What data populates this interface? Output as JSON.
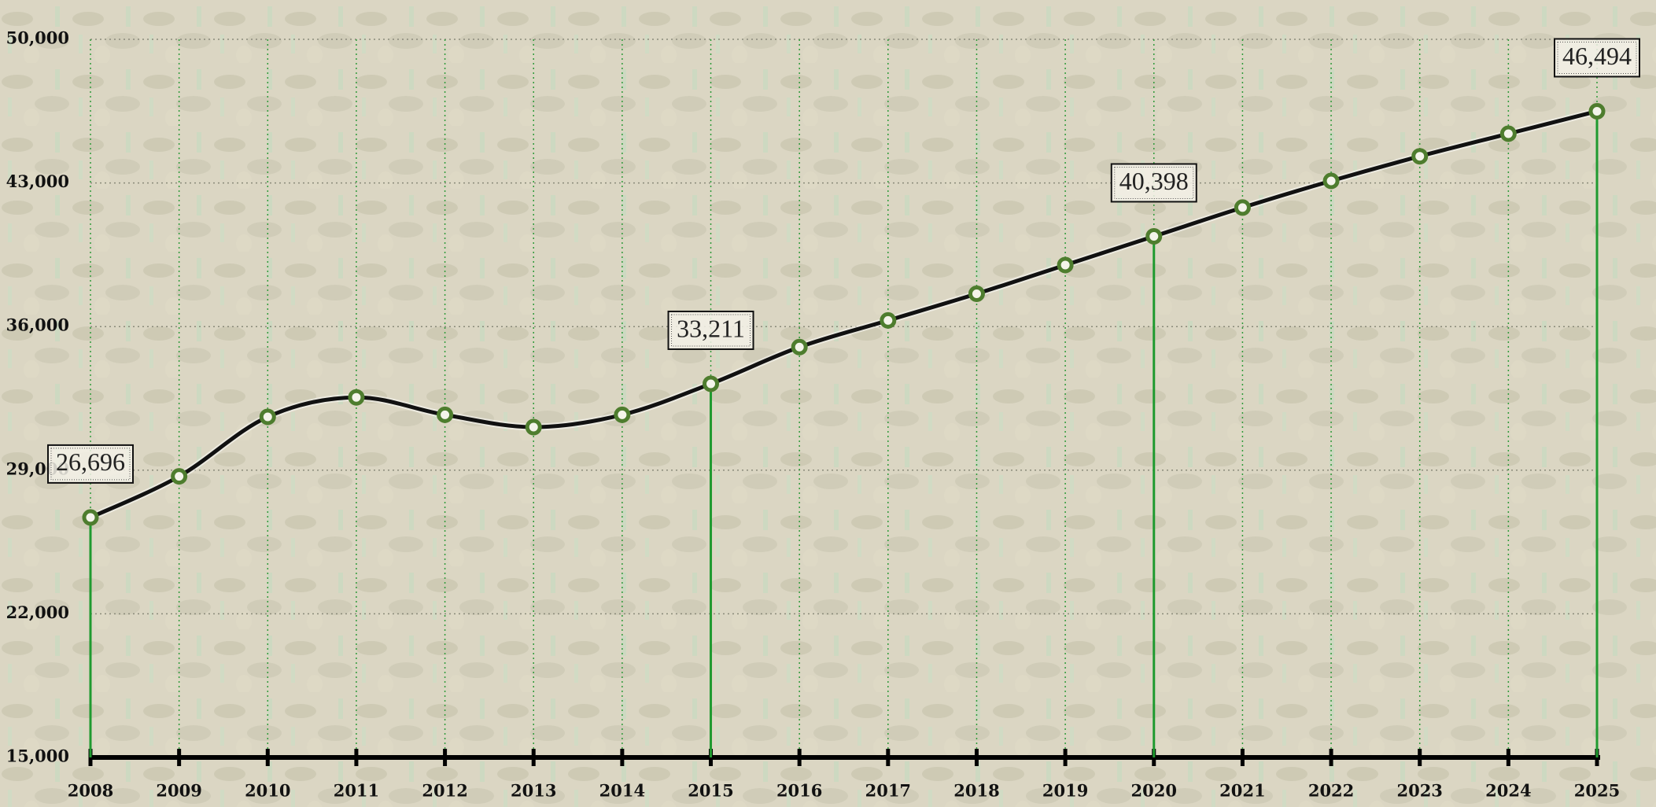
{
  "chart_data": {
    "type": "line",
    "categories": [
      "2008",
      "2009",
      "2010",
      "2011",
      "2012",
      "2013",
      "2014",
      "2015",
      "2016",
      "2017",
      "2018",
      "2019",
      "2020",
      "2021",
      "2022",
      "2023",
      "2024",
      "2025"
    ],
    "series": [
      {
        "color": "#111111",
        "values": [
          26696,
          28700,
          31600,
          32550,
          31700,
          31100,
          31700,
          33211,
          35000,
          36300,
          37600,
          39000,
          40398,
          41800,
          43100,
          44300,
          45400,
          46494
        ],
        "value_labels": [
          "26,696",
          null,
          null,
          null,
          null,
          null,
          null,
          "33,211",
          null,
          null,
          null,
          null,
          "40,398",
          null,
          null,
          null,
          null,
          "46,494"
        ]
      }
    ],
    "marker_color": "#4e7d2e",
    "drop_line_color": "#1f9a2f",
    "ylim": [
      15000,
      50000
    ],
    "yticks": [
      {
        "value": 15000,
        "label": "15,000"
      },
      {
        "value": 22000,
        "label": "22,000"
      },
      {
        "value": 29000,
        "label": "29,000"
      },
      {
        "value": 36000,
        "label": "36,000"
      },
      {
        "value": 43000,
        "label": "43,000"
      },
      {
        "value": 50000,
        "label": "50,000"
      }
    ],
    "grid": true
  }
}
